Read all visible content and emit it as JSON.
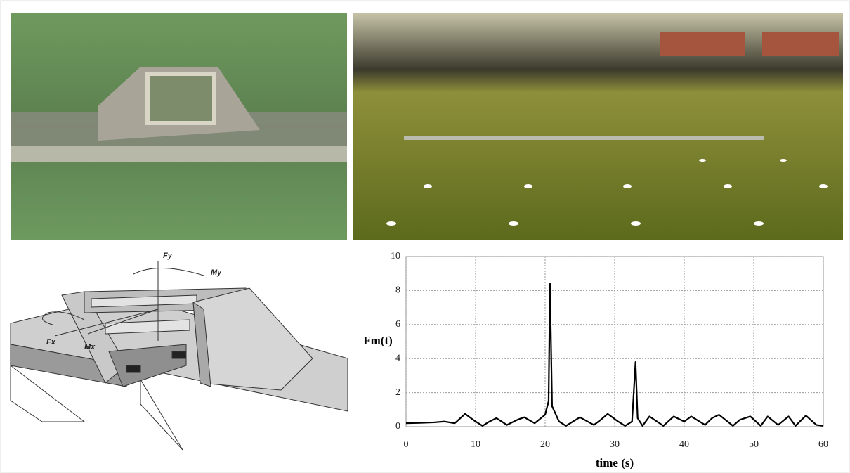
{
  "diagram": {
    "labels": [
      "Fy",
      "My",
      "Fx",
      "Mx"
    ]
  },
  "chart_data": {
    "type": "line",
    "x_label": "time (s)",
    "y_label": "Fm(t)",
    "x": [
      0,
      2,
      4,
      5.5,
      7,
      8.5,
      10,
      11,
      12,
      13,
      14.5,
      16,
      17,
      18.5,
      20,
      20.5,
      20.7,
      21,
      22,
      23,
      25,
      27,
      28,
      29,
      30.5,
      31.5,
      32.5,
      33,
      33.3,
      34,
      35,
      37,
      38.5,
      40,
      41,
      43,
      44,
      45,
      47,
      48,
      49.5,
      51,
      52,
      53.5,
      55,
      56,
      57.5,
      59,
      60
    ],
    "values": [
      0.2,
      0.22,
      0.25,
      0.3,
      0.2,
      0.75,
      0.3,
      0.05,
      0.3,
      0.5,
      0.1,
      0.4,
      0.55,
      0.2,
      0.7,
      1.5,
      8.4,
      1.2,
      0.3,
      0.05,
      0.55,
      0.1,
      0.4,
      0.75,
      0.3,
      0.05,
      0.3,
      3.8,
      0.5,
      0.05,
      0.6,
      0.05,
      0.6,
      0.3,
      0.6,
      0.1,
      0.5,
      0.7,
      0.05,
      0.4,
      0.6,
      0.05,
      0.6,
      0.1,
      0.6,
      0.05,
      0.65,
      0.1,
      0.05
    ],
    "color": "#000000",
    "xlim": [
      0,
      60
    ],
    "ylim": [
      0,
      10
    ],
    "xticks": [
      0,
      10,
      20,
      30,
      40,
      50,
      60
    ],
    "yticks": [
      0,
      2,
      4,
      6,
      8,
      10
    ],
    "grid": true
  }
}
